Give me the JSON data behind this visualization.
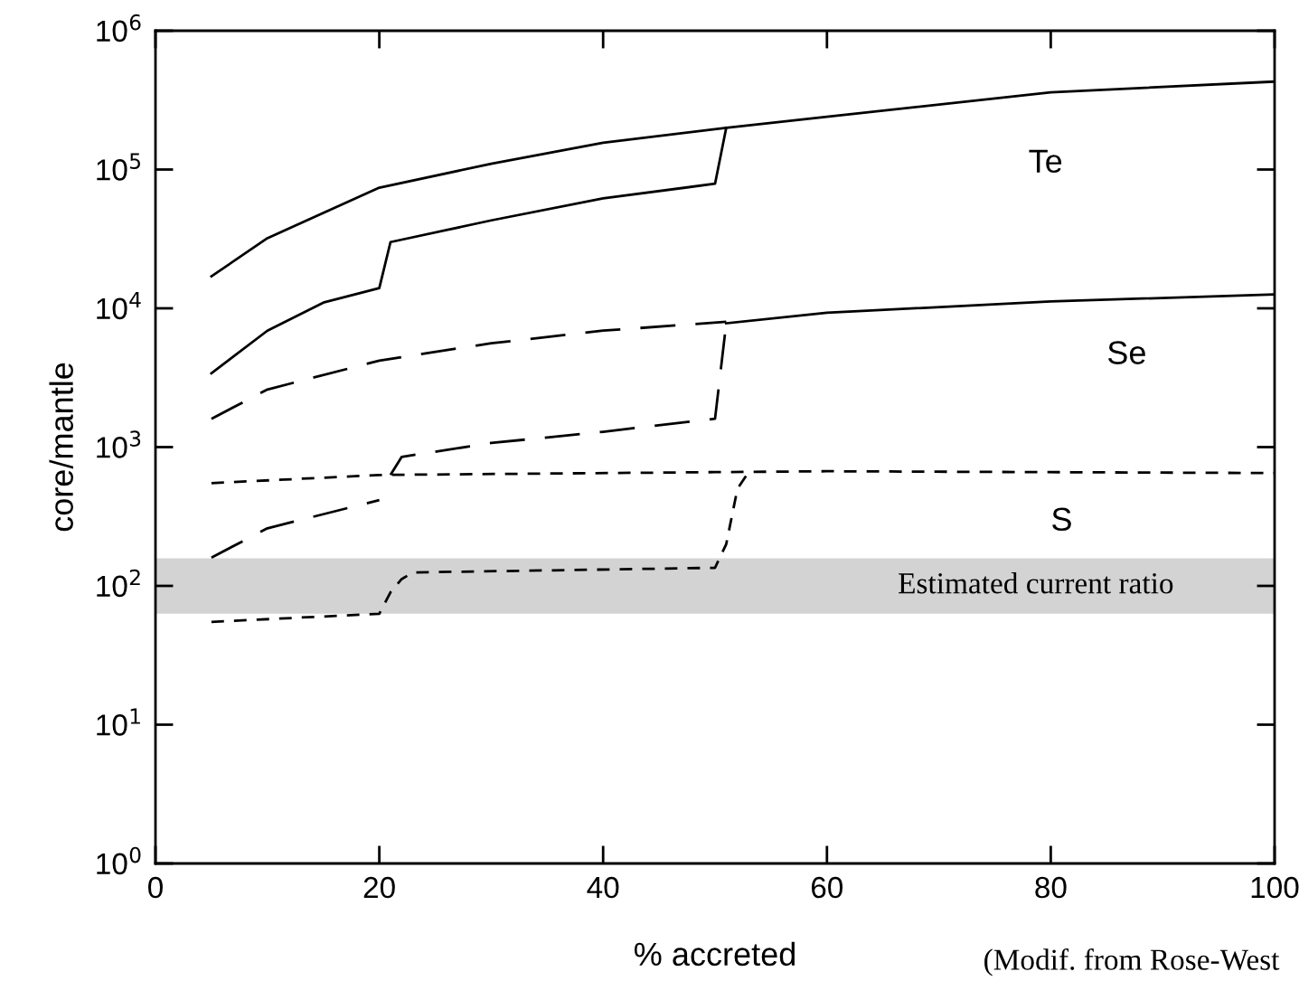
{
  "chart_data": {
    "type": "line",
    "xlabel": "% accreted",
    "ylabel": "core/mantle",
    "log": true,
    "xlim": [
      0,
      100
    ],
    "xticks": [
      0,
      20,
      40,
      60,
      80,
      100
    ],
    "ylim": [
      1,
      1000000
    ],
    "yticks": [
      {
        "value": 1,
        "label": "10$^{0}$"
      },
      {
        "value": 10,
        "label": "10$^{1}$"
      },
      {
        "value": 100,
        "label": "10$^{2}$"
      },
      {
        "value": 1000,
        "label": "10$^{3}$"
      },
      {
        "value": 10000,
        "label": "10$^{4}$"
      },
      {
        "value": 100000,
        "label": "10$^{5}$"
      },
      {
        "value": 1000000,
        "label": "10$^{6}$"
      }
    ],
    "grid": false,
    "legend": false,
    "marker": "none",
    "series": [
      {
        "color": "#000000",
        "line_style": "solid",
        "x": [
          5,
          10,
          20,
          30,
          40,
          51,
          60,
          80,
          100
        ],
        "values": [
          17000,
          32000,
          74000,
          110000,
          156000,
          200000,
          240000,
          360000,
          430000
        ]
      },
      {
        "color": "#000000",
        "line_style": "solid",
        "x": [
          5,
          10,
          15,
          20,
          21,
          30,
          40,
          50,
          51
        ],
        "values": [
          3400,
          6900,
          11000,
          14000,
          30000,
          43000,
          62000,
          79000,
          200000
        ]
      },
      {
        "color": "#000000",
        "line_style": "dashed",
        "x": [
          5,
          10,
          20,
          30,
          40,
          51
        ],
        "values": [
          1600,
          2600,
          4200,
          5600,
          6900,
          8000
        ]
      },
      {
        "color": "#000000",
        "line_style": "dashed",
        "x": [
          5,
          10,
          20
        ],
        "values": [
          160,
          260,
          415
        ]
      },
      {
        "color": "#000000",
        "line_style": "dashed",
        "x": [
          21,
          22,
          30,
          40,
          50,
          51
        ],
        "values": [
          630,
          850,
          1070,
          1290,
          1600,
          7800
        ]
      },
      {
        "color": "#000000",
        "line_style": "solid",
        "x": [
          51,
          60,
          80,
          100
        ],
        "values": [
          7800,
          9300,
          11200,
          12600
        ]
      },
      {
        "color": "#000000",
        "line_style": "dotted",
        "x": [
          5,
          20,
          50,
          60,
          100
        ],
        "values": [
          550,
          630,
          660,
          670,
          650
        ]
      },
      {
        "color": "#000000",
        "line_style": "dotted",
        "x": [
          5,
          20,
          21,
          22,
          23,
          50,
          51,
          52,
          53
        ],
        "values": [
          55,
          63,
          90,
          112,
          125,
          135,
          200,
          500,
          660
        ]
      }
    ],
    "bands": [
      {
        "axis": "y",
        "from": 63,
        "to": 158,
        "label": "Estimated current ratio",
        "color": "#d3d3d3"
      }
    ],
    "annotations": [
      "Te",
      "Se",
      "S",
      "(Modif. from Rose-West"
    ]
  }
}
